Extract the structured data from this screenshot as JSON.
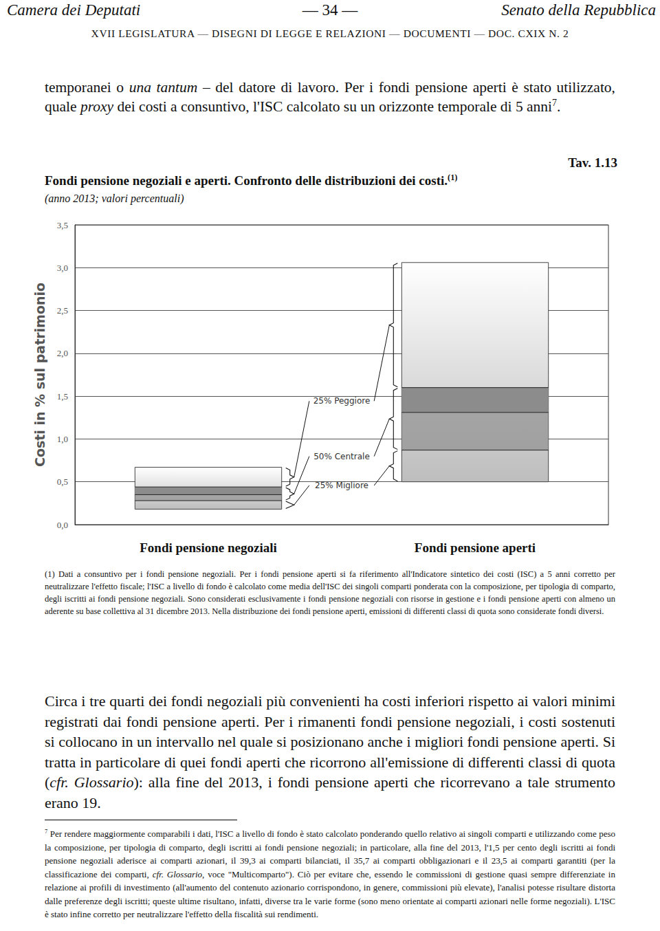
{
  "header": {
    "left": "Camera dei Deputati",
    "center": "— 34 —",
    "right": "Senato della Repubblica",
    "subheader": "XVII LEGISLATURA — DISEGNI DI LEGGE E RELAZIONI — DOCUMENTI — DOC. CXIX N. 2"
  },
  "intro": [
    {
      "text": "temporanei o "
    },
    {
      "text": "una tantum",
      "italic": true
    },
    {
      "text": " – del datore di lavoro. Per i fondi pensione aperti è stato utilizzato, quale "
    },
    {
      "text": "proxy",
      "italic": true
    },
    {
      "text": " dei costi a consuntivo, l'ISC calcolato su un orizzonte temporale di 5 anni"
    },
    {
      "text": "7",
      "sup": true
    },
    {
      "text": "."
    }
  ],
  "figure": {
    "number": "Tav. 1.13",
    "title": [
      {
        "text": "Fondi pensione negoziali e aperti. Confronto delle distribuzioni dei costi."
      },
      {
        "text": "(1)",
        "sup": true
      }
    ],
    "subtitle": "(anno 2013; valori percentuali)",
    "note": [
      {
        "text": "(1) Dati a consuntivo per i fondi pensione negoziali. Per i fondi pensione aperti si fa riferimento all'Indicatore sintetico dei costi (ISC) a 5 anni corretto per neutralizzare l'effetto fiscale; l'ISC a livello di fondo è calcolato come media dell'ISC dei singoli comparti ponderata con la composizione, per tipologia di comparto, degli iscritti ai fondi pensione negoziali. Sono considerati esclusivamente i fondi pensione negoziali con risorse in gestione e i fondi pensione aperti con almeno un aderente su base collettiva al 31 dicembre 2013. Nella distribuzione dei fondi pensione aperti, emissioni di differenti classi di quota sono considerate fondi diversi."
      }
    ]
  },
  "chart_data": {
    "type": "box",
    "categories": [
      "Fondi pensione negoziali",
      "Fondi pensione aperti"
    ],
    "values": [
      [
        0.18,
        0.28,
        0.35,
        0.44,
        0.67
      ],
      [
        0.5,
        0.87,
        1.31,
        1.6,
        3.06
      ]
    ],
    "y_label": "Costi in % sul patrimonio",
    "annotations": [
      "25% Peggiore",
      "50% Centrale",
      "25% Migliore"
    ],
    "color": "#8c8c8c",
    "ylim": [
      0,
      3.5
    ],
    "yticks": [
      {
        "value": 0,
        "label": "0,0"
      },
      {
        "value": 0.5,
        "label": "0,5"
      },
      {
        "value": 1,
        "label": "1,0"
      },
      {
        "value": 1.5,
        "label": "1,5"
      },
      {
        "value": 2,
        "label": "2,0"
      },
      {
        "value": 2.5,
        "label": "2,5"
      },
      {
        "value": 3,
        "label": "3,0"
      },
      {
        "value": 3.5,
        "label": "3,5"
      }
    ],
    "grid": true
  },
  "paragraph": [
    {
      "text": "Circa i tre quarti dei fondi negoziali più convenienti ha costi inferiori rispetto ai valori minimi registrati dai fondi pensione aperti. Per i rimanenti fondi pensione negoziali, i costi sostenuti si collocano in un intervallo nel quale si posizionano anche i migliori fondi pensione aperti. Si tratta in particolare di quei fondi aperti che ricorrono all'emissione di differenti classi di quota ("
    },
    {
      "text": "cfr. Glossario",
      "italic": true
    },
    {
      "text": "): alla fine del 2013, i fondi pensione aperti che ricorrevano a tale strumento erano 19."
    }
  ],
  "footnote": [
    {
      "text": "7",
      "sup": true
    },
    {
      "text": " Per rendere maggiormente comparabili i dati, l'ISC a livello di fondo è stato calcolato ponderando quello relativo ai singoli comparti e utilizzando come peso la composizione, per tipologia di comparto, degli iscritti ai fondi pensione negoziali; in particolare, alla fine del 2013, l'1,5 per cento degli iscritti ai fondi pensione negoziali aderisce ai comparti azionari, il 39,3 ai comparti bilanciati, il 35,7 ai comparti obbligazionari e il 23,5 ai comparti garantiti (per la classificazione dei comparti, "
    },
    {
      "text": "cfr. Glossario",
      "italic": true
    },
    {
      "text": ", voce \"Multicomparto\"). Ciò per evitare che, essendo le commissioni di gestione quasi sempre differenziate in relazione ai profili di investimento (all'aumento del contenuto azionario corrispondono, in genere, commissioni più elevate), l'analisi potesse risultare distorta dalle preferenze degli iscritti; queste ultime risultano, infatti, diverse tra le varie forme (sono meno orientate ai comparti azionari nelle forme negoziali). L'ISC è stato infine corretto per neutralizzare l'effetto della fiscalità sui rendimenti."
    }
  ]
}
